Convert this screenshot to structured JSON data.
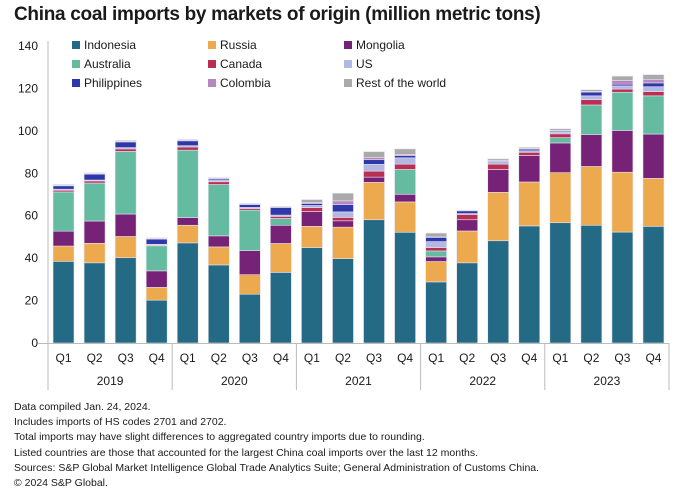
{
  "title": "China coal imports by markets of origin (million metric tons)",
  "notes": [
    "Data compiled Jan. 24, 2024.",
    "Includes imports of HS codes 2701 and 2702.",
    "Total imports may have slight differences to aggregated country imports due to rounding.",
    "Listed countries are those that accounted for the largest China coal imports over the last 12 months.",
    "Sources: S&P Global Market Intelligence Global Trade Analytics Suite; General Administration of Customs China.",
    "© 2024 S&P Global."
  ],
  "chart_data": {
    "type": "bar",
    "stacked": true,
    "title": "China coal imports by markets of origin (million metric tons)",
    "xlabel": "",
    "ylabel": "",
    "ylim": [
      0,
      140
    ],
    "yticks": [
      0,
      20,
      40,
      60,
      80,
      100,
      120,
      140
    ],
    "grid": false,
    "legend_position": "top-left",
    "groups": [
      "2019",
      "2020",
      "2021",
      "2022",
      "2023"
    ],
    "categories": [
      "Q1",
      "Q2",
      "Q3",
      "Q4",
      "Q1",
      "Q2",
      "Q3",
      "Q4",
      "Q1",
      "Q2",
      "Q3",
      "Q4",
      "Q1",
      "Q2",
      "Q3",
      "Q4",
      "Q1",
      "Q2",
      "Q3",
      "Q4"
    ],
    "series": [
      {
        "name": "Indonesia",
        "color": "#256a85",
        "values": [
          38.5,
          37.8,
          40.2,
          20.2,
          47.2,
          36.8,
          23.0,
          33.3,
          45.0,
          39.8,
          58.1,
          52.2,
          28.8,
          37.8,
          48.2,
          55.2,
          56.7,
          55.5,
          52.3,
          55.0
        ]
      },
      {
        "name": "Russia",
        "color": "#eda94e",
        "values": [
          7.2,
          9.2,
          10.0,
          6.0,
          8.3,
          8.5,
          9.2,
          13.6,
          10.0,
          14.8,
          17.6,
          14.3,
          9.6,
          15.0,
          22.8,
          20.7,
          23.6,
          27.7,
          28.2,
          22.6
        ]
      },
      {
        "name": "Mongolia",
        "color": "#752277",
        "values": [
          7.0,
          10.5,
          10.6,
          7.8,
          3.6,
          5.2,
          11.4,
          8.6,
          7.0,
          3.0,
          2.5,
          3.6,
          2.2,
          5.3,
          10.8,
          12.5,
          14.0,
          15.0,
          19.7,
          20.9
        ]
      },
      {
        "name": "Australia",
        "color": "#64bb9f",
        "values": [
          18.5,
          17.9,
          29.5,
          11.8,
          31.8,
          24.2,
          19.0,
          3.2,
          0,
          0,
          0,
          11.7,
          2.8,
          0,
          0,
          0,
          2.5,
          14.0,
          18.0,
          18.0
        ]
      },
      {
        "name": "Canada",
        "color": "#b92e53",
        "values": [
          0.8,
          1.0,
          1.2,
          0.4,
          1.5,
          1.3,
          0.8,
          1.0,
          1.8,
          1.6,
          2.8,
          2.5,
          1.6,
          2.5,
          2.5,
          1.5,
          1.8,
          2.5,
          1.5,
          2.0
        ]
      },
      {
        "name": "US",
        "color": "#b2b8e2",
        "values": [
          0.5,
          0.4,
          0.6,
          0.3,
          0.6,
          0.6,
          0.5,
          0.6,
          1.0,
          2.6,
          3.2,
          3.0,
          2.8,
          0.4,
          1.5,
          0.7,
          0.8,
          1.8,
          1.5,
          2.3
        ]
      },
      {
        "name": "Philippines",
        "color": "#2d39aa",
        "values": [
          1.6,
          2.8,
          2.7,
          2.5,
          2.3,
          0.7,
          1.4,
          3.6,
          1.0,
          3.4,
          2.2,
          1.0,
          2.0,
          1.3,
          0,
          0.8,
          0.5,
          1.8,
          0.8,
          1.8
        ]
      },
      {
        "name": "Colombia",
        "color": "#b686c0",
        "values": [
          0.2,
          0.3,
          0.3,
          0.3,
          0.4,
          0.4,
          0.2,
          0.2,
          0.5,
          1.8,
          1.0,
          0.6,
          0.2,
          0,
          0.2,
          0.3,
          0.3,
          0.3,
          1.8,
          1.7
        ]
      },
      {
        "name": "Rest of the world",
        "color": "#aaaaaa",
        "values": [
          0.4,
          0.3,
          0.4,
          0.3,
          0.3,
          0.3,
          0.3,
          0.3,
          1.3,
          3.6,
          2.8,
          2.6,
          1.8,
          0.3,
          0.8,
          0.5,
          0.8,
          0.8,
          2.0,
          2.2
        ]
      }
    ]
  }
}
